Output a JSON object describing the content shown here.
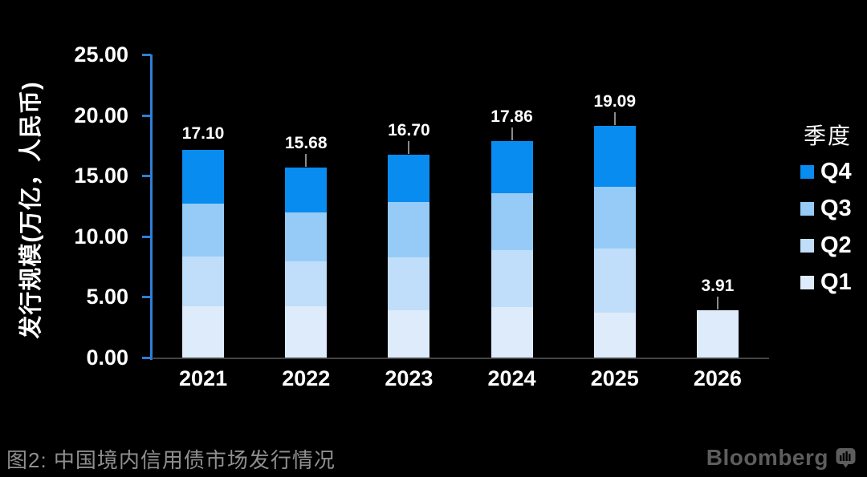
{
  "chart_data": {
    "type": "bar",
    "stacked": true,
    "categories": [
      "2021",
      "2022",
      "2023",
      "2024",
      "2025",
      "2026"
    ],
    "series": [
      {
        "name": "Q1",
        "color": "#deebfa",
        "values": [
          4.22,
          4.25,
          3.91,
          4.18,
          3.71,
          3.91
        ]
      },
      {
        "name": "Q2",
        "color": "#c0defa",
        "values": [
          4.11,
          3.68,
          4.38,
          4.71,
          5.29,
          0
        ]
      },
      {
        "name": "Q3",
        "color": "#96cbf7",
        "values": [
          4.36,
          4.07,
          4.56,
          4.69,
          5.07,
          0
        ]
      },
      {
        "name": "Q4",
        "color": "#088cf0",
        "values": [
          4.41,
          3.68,
          3.85,
          4.28,
          5.02,
          0
        ]
      }
    ],
    "totals": [
      "17.10",
      "15.68",
      "16.70",
      "17.86",
      "19.09",
      "3.91"
    ],
    "total_values": [
      17.1,
      15.68,
      16.7,
      17.86,
      19.09,
      3.91
    ],
    "label_leader_lines": [
      false,
      true,
      true,
      true,
      true,
      true
    ],
    "ylabel": "发行规模(万亿，人民币)",
    "xlabel": "",
    "ylim": [
      0,
      25
    ],
    "ytick_step": 5,
    "yticks": [
      "25.00",
      "20.00",
      "15.00",
      "10.00",
      "5.00",
      "0.00"
    ],
    "grid": false,
    "legend_position": "right",
    "title": "图2: 中国境内信用债市场发行情况"
  },
  "legend": {
    "title": "季度",
    "items": [
      {
        "label": "Q4",
        "color": "#088cf0"
      },
      {
        "label": "Q3",
        "color": "#96cbf7"
      },
      {
        "label": "Q2",
        "color": "#c0defa"
      },
      {
        "label": "Q1",
        "color": "#deebfa"
      }
    ]
  },
  "caption": "图2: 中国境内信用债市场发行情况",
  "branding": {
    "logo_text": "Bloomberg"
  },
  "colors": {
    "background": "#000000",
    "y_axis_blue": "#2e7fd8",
    "x_axis_gray": "#454545",
    "leader_gray": "#8a8a8a",
    "text_white": "#ffffff",
    "caption_gray": "#8f8f8f",
    "logo_gray": "#5d5d5d"
  }
}
